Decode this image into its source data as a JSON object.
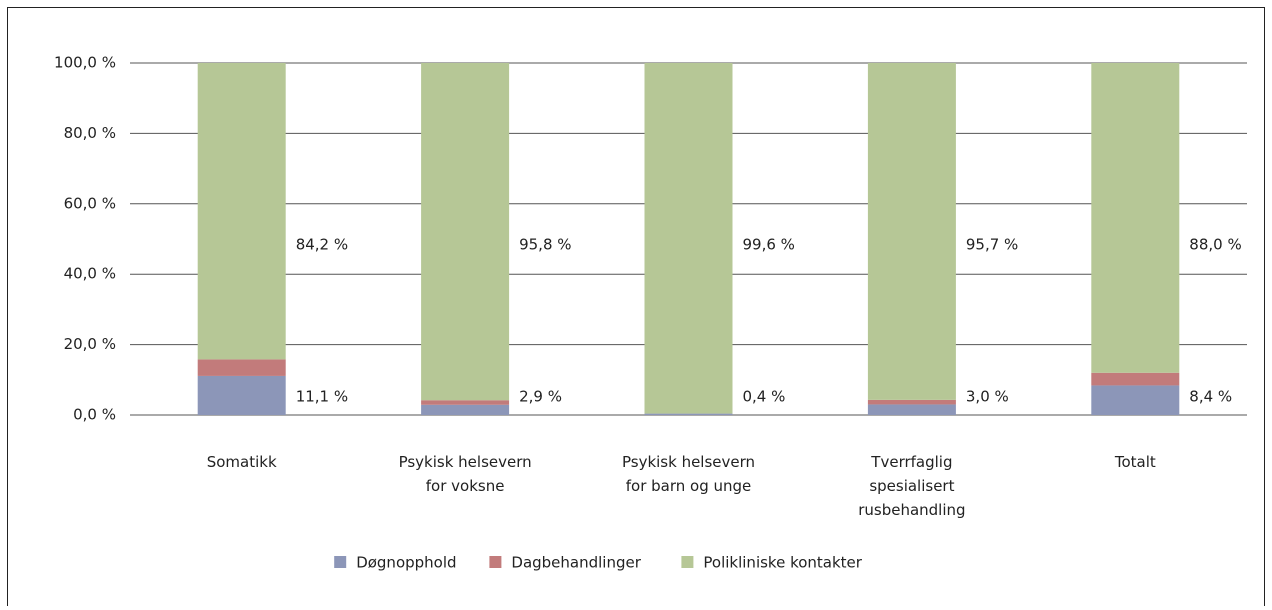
{
  "chart_data": {
    "type": "stacked_bar",
    "categories": [
      "Somatikk",
      "Psykisk helsevern\nfor voksne",
      "Psykisk helsevern\nfor barn og unge",
      "Tverrfaglig\nspesialisert\nrusbehandling",
      "Totalt"
    ],
    "series": [
      {
        "name": "Døgnopphold",
        "color": "#8c96b8",
        "values": [
          11.1,
          2.9,
          0.4,
          3.0,
          8.4
        ],
        "value_labels": [
          "11,1 %",
          "2,9 %",
          "0,4 %",
          "3,0 %",
          "8,4 %"
        ]
      },
      {
        "name": "Dagbehandlinger",
        "color": "#c27b7b",
        "values": [
          4.7,
          1.3,
          0,
          1.3,
          3.6
        ]
      },
      {
        "name": "Polikliniske kontakter",
        "color": "#b6c796",
        "values": [
          84.2,
          95.8,
          99.6,
          95.7,
          88.0
        ],
        "value_labels": [
          "84,2 %",
          "95,8 %",
          "99,6 %",
          "95,7 %",
          "88,0 %"
        ]
      }
    ],
    "ylim": [
      0,
      100
    ],
    "yticks": [
      {
        "value": 0,
        "label": "0,0 %"
      },
      {
        "value": 20,
        "label": "20,0 %"
      },
      {
        "value": 40,
        "label": "40,0 %"
      },
      {
        "value": 60,
        "label": "60,0 %"
      },
      {
        "value": 80,
        "label": "80,0 %"
      },
      {
        "value": 100,
        "label": "100,0 %"
      }
    ],
    "grid": true,
    "legend": "bottom"
  }
}
